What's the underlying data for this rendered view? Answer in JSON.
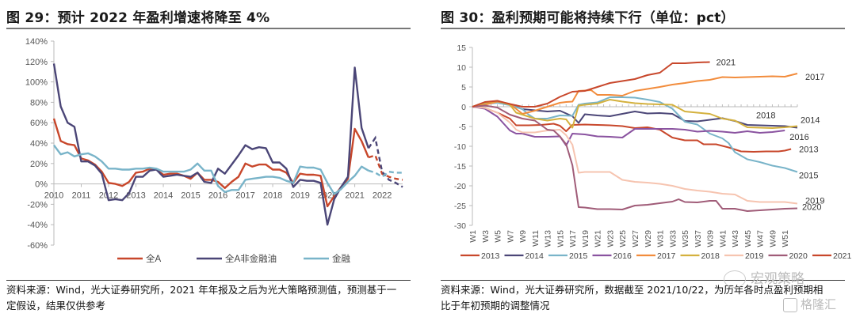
{
  "left": {
    "title": "图 29：预计 2022 年盈利增速将降至 4%",
    "note_line1": "资料来源：Wind，光大证券研究所，2021 年年报及之后为光大策略预测值，预测基于一",
    "note_line2": "定假设，结果仅供参考"
  },
  "right": {
    "title": "图 30：盈利预期可能将持续下行（单位：pct）",
    "note_line1": "资料来源：Wind，光大证券研究所，数据截至 2021/10/22，为历年各时点盈利预期相",
    "note_line2": "比于年初预期的调整情况"
  },
  "watermark": {
    "text1": "宏观策略",
    "text2": "格隆汇"
  },
  "chart_data": [
    {
      "type": "line",
      "title": "预计 2022 年盈利增速将降至 4%",
      "xlabel": "",
      "ylabel": "",
      "ylim": [
        -60,
        140
      ],
      "yticks": [
        -60,
        -40,
        -20,
        0,
        20,
        40,
        60,
        80,
        100,
        120,
        140
      ],
      "ytick_format": "percent",
      "xticks": [
        "2010",
        "2011",
        "2012",
        "2013",
        "2014",
        "2015",
        "2016",
        "2017",
        "2018",
        "2019",
        "2020",
        "2021",
        "2022"
      ],
      "x_start": 2010.0,
      "x_end": 2022.75,
      "forecast_from": 2021.75,
      "legend": "bottom",
      "grid": false,
      "series": [
        {
          "name": "全A",
          "color": "#c8472b",
          "x": [
            2010.0,
            2010.25,
            2010.5,
            2010.75,
            2011.0,
            2011.25,
            2011.5,
            2011.75,
            2012.0,
            2012.25,
            2012.5,
            2012.75,
            2013.0,
            2013.25,
            2013.5,
            2013.75,
            2014.0,
            2014.25,
            2014.5,
            2014.75,
            2015.0,
            2015.25,
            2015.5,
            2015.75,
            2016.0,
            2016.25,
            2016.5,
            2016.75,
            2017.0,
            2017.25,
            2017.5,
            2017.75,
            2018.0,
            2018.25,
            2018.5,
            2018.75,
            2019.0,
            2019.25,
            2019.5,
            2019.75,
            2020.0,
            2020.25,
            2020.5,
            2020.75,
            2021.0,
            2021.25,
            2021.5,
            2021.75,
            2022.0,
            2022.25,
            2022.5,
            2022.75
          ],
          "values": [
            64,
            42,
            39,
            38,
            25,
            23,
            19,
            12,
            1,
            0,
            -2,
            2,
            11,
            12,
            15,
            14,
            9,
            10,
            10,
            8,
            5,
            11,
            4,
            4,
            2,
            -4,
            2,
            7,
            20,
            17,
            19,
            19,
            14,
            14,
            11,
            1,
            10,
            9,
            9,
            8,
            -22,
            -12,
            -3,
            5,
            54,
            42,
            26,
            28,
            10,
            7,
            5,
            4
          ]
        },
        {
          "name": "全A非金融油",
          "color": "#4b4677",
          "x": [
            2010.0,
            2010.25,
            2010.5,
            2010.75,
            2011.0,
            2011.25,
            2011.5,
            2011.75,
            2012.0,
            2012.25,
            2012.5,
            2012.75,
            2013.0,
            2013.25,
            2013.5,
            2013.75,
            2014.0,
            2014.25,
            2014.5,
            2014.75,
            2015.0,
            2015.25,
            2015.5,
            2015.75,
            2016.0,
            2016.25,
            2016.5,
            2016.75,
            2017.0,
            2017.25,
            2017.5,
            2017.75,
            2018.0,
            2018.25,
            2018.5,
            2018.75,
            2019.0,
            2019.25,
            2019.5,
            2019.75,
            2020.0,
            2020.25,
            2020.5,
            2020.75,
            2021.0,
            2021.25,
            2021.5,
            2021.75,
            2022.0,
            2022.25,
            2022.5,
            2022.75
          ],
          "values": [
            118,
            76,
            60,
            56,
            22,
            22,
            18,
            10,
            -16,
            -15,
            -16,
            -9,
            7,
            7,
            13,
            14,
            7,
            8,
            9,
            8,
            7,
            11,
            2,
            1,
            15,
            10,
            19,
            28,
            38,
            34,
            36,
            35,
            21,
            21,
            15,
            -3,
            4,
            3,
            3,
            1,
            -40,
            -15,
            -3,
            7,
            114,
            55,
            35,
            45,
            12,
            4,
            1,
            -3
          ]
        },
        {
          "name": "金融",
          "color": "#79b4c9",
          "x": [
            2010.0,
            2010.25,
            2010.5,
            2010.75,
            2011.0,
            2011.25,
            2011.5,
            2011.75,
            2012.0,
            2012.25,
            2012.5,
            2012.75,
            2013.0,
            2013.25,
            2013.5,
            2013.75,
            2014.0,
            2014.25,
            2014.5,
            2014.75,
            2015.0,
            2015.25,
            2015.5,
            2015.75,
            2016.0,
            2016.25,
            2016.5,
            2016.75,
            2017.0,
            2017.25,
            2017.5,
            2017.75,
            2018.0,
            2018.25,
            2018.5,
            2018.75,
            2019.0,
            2019.25,
            2019.5,
            2019.75,
            2020.0,
            2020.25,
            2020.5,
            2020.75,
            2021.0,
            2021.25,
            2021.5,
            2021.75,
            2022.0,
            2022.25,
            2022.5,
            2022.75
          ],
          "values": [
            38,
            29,
            31,
            27,
            29,
            30,
            27,
            22,
            15,
            15,
            14,
            14,
            15,
            15,
            16,
            15,
            12,
            12,
            12,
            12,
            14,
            20,
            13,
            13,
            -2,
            -8,
            -6,
            -6,
            4,
            5,
            6,
            7,
            7,
            6,
            3,
            1,
            17,
            16,
            16,
            14,
            1,
            -10,
            -5,
            2,
            8,
            17,
            13,
            11,
            7,
            12,
            11,
            11
          ]
        }
      ]
    },
    {
      "type": "line",
      "title": "盈利预期可能将持续下行（单位：pct）",
      "xlabel": "",
      "ylabel": "",
      "ylim": [
        -30,
        15
      ],
      "yticks": [
        -30,
        -25,
        -20,
        -15,
        -10,
        -5,
        0,
        5,
        10,
        15
      ],
      "xticks": [
        "W1",
        "W3",
        "W5",
        "W7",
        "W9",
        "W11",
        "W13",
        "W15",
        "W17",
        "W19",
        "W21",
        "W23",
        "W25",
        "W27",
        "W29",
        "W31",
        "W33",
        "W35",
        "W37",
        "W39",
        "W41",
        "W43",
        "W45",
        "W47",
        "W49",
        "W51"
      ],
      "x_range": [
        1,
        53
      ],
      "legend": "bottom",
      "grid": false,
      "series": [
        {
          "name": "2013",
          "color": "#c8472b",
          "end_label": "2013",
          "x": [
            1,
            3,
            5,
            7,
            8,
            10,
            12,
            14,
            15,
            16,
            17,
            19,
            21,
            23,
            25,
            27,
            29,
            31,
            33,
            35,
            37,
            38,
            40,
            42,
            44,
            46,
            48,
            50,
            51,
            52
          ],
          "values": [
            0,
            -0.3,
            -1.5,
            -3,
            -4.7,
            -4.7,
            -4.6,
            -4.3,
            -4.8,
            -6.2,
            -4.6,
            -4.5,
            -4.6,
            -4.7,
            -4.9,
            -5.4,
            -5.2,
            -5.8,
            -7.8,
            -8.5,
            -8.5,
            -9.5,
            -9.5,
            -10.3,
            -11.3,
            -11.4,
            -11.3,
            -11.3,
            -11.1,
            -10.7
          ]
        },
        {
          "name": "2014",
          "color": "#4b4677",
          "end_label": "2014",
          "x": [
            1,
            3,
            5,
            7,
            9,
            11,
            13,
            15,
            17,
            18,
            19,
            21,
            23,
            25,
            27,
            29,
            31,
            33,
            35,
            37,
            39,
            41,
            43,
            45,
            47,
            49,
            51,
            53
          ],
          "values": [
            0,
            0.8,
            1.2,
            0.6,
            -0.6,
            -0.9,
            -1.2,
            -1,
            -2.4,
            -4.1,
            -1.9,
            -2.2,
            -2.4,
            -1.8,
            -1.2,
            -1.7,
            -1.6,
            -1.8,
            -3.6,
            -3.7,
            -3.3,
            -2.9,
            -3.6,
            -4.6,
            -4.7,
            -4.8,
            -4.9,
            -5.3
          ]
        },
        {
          "name": "2015",
          "color": "#79b4c9",
          "end_label": "2015",
          "x": [
            1,
            3,
            5,
            7,
            9,
            10,
            11,
            13,
            15,
            17,
            18,
            19,
            21,
            23,
            25,
            27,
            29,
            31,
            33,
            35,
            37,
            39,
            41,
            42,
            43,
            45,
            47,
            49,
            51,
            53
          ],
          "values": [
            0,
            0.7,
            1,
            0.4,
            -0.6,
            -2,
            -3,
            -3,
            -2.2,
            -2.3,
            0.5,
            0.8,
            1.1,
            2.4,
            2.4,
            2.3,
            1.8,
            1.2,
            -0.5,
            -3.8,
            -4.5,
            -6.8,
            -8,
            -9.2,
            -11.5,
            -13.3,
            -14,
            -14.9,
            -15.5,
            -16.5
          ]
        },
        {
          "name": "2016",
          "color": "#8a53a0",
          "end_label": "2016",
          "x": [
            1,
            3,
            5,
            7,
            8,
            9,
            11,
            13,
            15,
            16,
            17,
            19,
            21,
            23,
            25,
            27,
            29,
            31,
            33,
            35,
            37,
            39,
            41,
            43,
            45,
            47,
            49,
            51
          ],
          "values": [
            0,
            -0.5,
            -2.5,
            -6,
            -6.8,
            -6.8,
            -7.6,
            -7.6,
            -7.5,
            -9.8,
            -6.8,
            -7,
            -7.5,
            -7.6,
            -7.8,
            -5.6,
            -5.6,
            -5.6,
            -5.6,
            -5.8,
            -6.3,
            -6.1,
            -6.3,
            -6.6,
            -6.2,
            -6.6,
            -6.4,
            -6
          ]
        },
        {
          "name": "2017",
          "color": "#f28c3c",
          "end_label": "2017",
          "x": [
            1,
            3,
            5,
            7,
            9,
            11,
            13,
            15,
            16,
            17,
            18,
            19,
            20,
            21,
            23,
            25,
            27,
            29,
            31,
            33,
            35,
            37,
            39,
            41,
            43,
            45,
            47,
            49,
            51,
            53
          ],
          "values": [
            0,
            0.5,
            1.3,
            0.7,
            -1.8,
            -1,
            0,
            1,
            1.2,
            1.3,
            4,
            4.1,
            4.2,
            3,
            3,
            2.8,
            4,
            4.5,
            5,
            5.6,
            6,
            6.5,
            6.8,
            7.5,
            7.4,
            7.5,
            7.6,
            7.7,
            7.6,
            8.4
          ]
        },
        {
          "name": "2018",
          "color": "#d4b13e",
          "end_label": "2018",
          "x": [
            1,
            3,
            5,
            7,
            8,
            9,
            11,
            13,
            15,
            16,
            17,
            18,
            19,
            21,
            23,
            25,
            27,
            29,
            31,
            33,
            35,
            37,
            39,
            41,
            43,
            45,
            47,
            49,
            51,
            53
          ],
          "values": [
            0,
            1,
            1.5,
            0.5,
            -1.5,
            -2,
            -3,
            -3.5,
            -3,
            -3.2,
            -5.3,
            0.3,
            0.5,
            0.8,
            1.8,
            1.3,
            0.9,
            0.7,
            0.6,
            0.5,
            -1.2,
            -1.5,
            -1.8,
            -3,
            -3.5,
            -5.2,
            -5.3,
            -5.4,
            -5.2,
            -4.9
          ]
        },
        {
          "name": "2019",
          "color": "#f6c4b0",
          "end_label": "2019",
          "x": [
            1,
            3,
            5,
            7,
            8,
            9,
            11,
            13,
            15,
            16,
            17,
            18,
            19,
            21,
            23,
            25,
            27,
            29,
            31,
            33,
            35,
            37,
            39,
            41,
            43,
            45,
            47,
            49,
            51,
            53
          ],
          "values": [
            0,
            -0.3,
            -1.5,
            -4,
            -5.8,
            -6.5,
            -6.5,
            -6,
            -5.8,
            -7.2,
            -9.6,
            -16.7,
            -16.5,
            -16.5,
            -16.5,
            -18.5,
            -19,
            -19.2,
            -19.5,
            -20,
            -20.8,
            -21.2,
            -21.5,
            -22,
            -22.2,
            -23.8,
            -24.1,
            -24.1,
            -24.1,
            -24.5
          ]
        },
        {
          "name": "2020",
          "color": "#a05c78",
          "end_label": "2020",
          "x": [
            1,
            3,
            5,
            7,
            9,
            11,
            13,
            14,
            15,
            16,
            17,
            18,
            19,
            21,
            23,
            25,
            27,
            29,
            31,
            33,
            34,
            35,
            37,
            39,
            40,
            41,
            43,
            45,
            47,
            49,
            51,
            53
          ],
          "values": [
            0,
            0.3,
            -0.2,
            -2,
            -3,
            -3.5,
            -5.8,
            -6,
            -7.5,
            -9.5,
            -14.8,
            -25.4,
            -25.5,
            -25.9,
            -25.9,
            -26,
            -25,
            -24.8,
            -24.4,
            -24,
            -23.4,
            -24.1,
            -24.2,
            -23.8,
            -23.8,
            -25.8,
            -25.8,
            -26.4,
            -26.2,
            -26,
            -25.8,
            -25.7
          ]
        },
        {
          "name": "2021",
          "color": "#c8472b",
          "end_label": "2021",
          "x": [
            1,
            3,
            5,
            7,
            9,
            11,
            13,
            15,
            17,
            19,
            21,
            23,
            25,
            27,
            29,
            31,
            33,
            35,
            37,
            39
          ],
          "values": [
            0,
            1.2,
            1.5,
            0.7,
            0,
            0,
            0.8,
            2.5,
            3.8,
            4,
            5,
            6,
            6.5,
            7,
            8,
            8.6,
            11,
            11,
            11.2,
            11.3
          ]
        }
      ]
    }
  ]
}
